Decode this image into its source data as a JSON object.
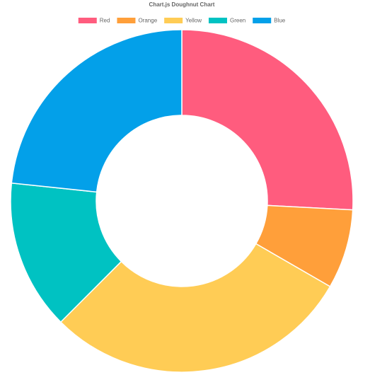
{
  "chart_data": {
    "type": "doughnut",
    "title": "Chart.js Doughnut Chart",
    "categories": [
      "Red",
      "Orange",
      "Yellow",
      "Green",
      "Blue"
    ],
    "values": [
      93,
      27,
      105,
      51,
      84
    ],
    "colors": [
      "#ff5c7e",
      "#ff9f3a",
      "#ffcc55",
      "#00c2c2",
      "#03a0e9"
    ],
    "legend": "top"
  }
}
